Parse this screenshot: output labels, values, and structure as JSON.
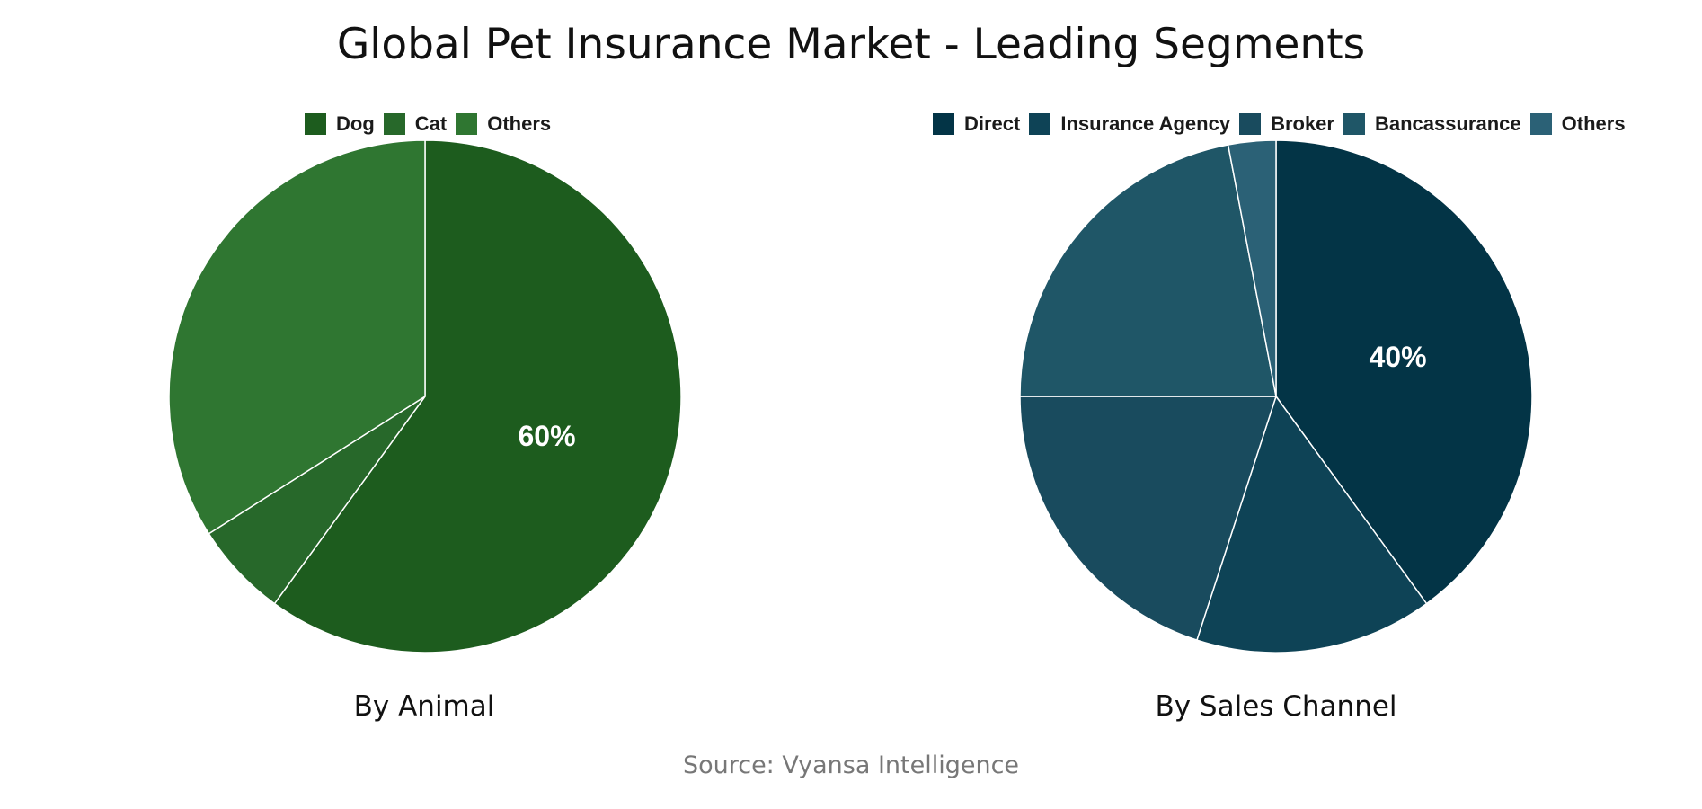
{
  "title": "Global Pet Insurance Market - Leading Segments",
  "source": "Source: Vyansa Intelligence",
  "chart_data": [
    {
      "type": "pie",
      "caption": "By Animal",
      "labels": [
        "Dog",
        "Cat",
        "Others"
      ],
      "values": [
        60,
        6,
        34
      ],
      "colors": [
        "#1d5c1e",
        "#27682a",
        "#2f7631"
      ],
      "data_labels": [
        "60%",
        "",
        ""
      ],
      "legend_position": "top"
    },
    {
      "type": "pie",
      "caption": "By Sales Channel",
      "labels": [
        "Direct",
        "Insurance Agency",
        "Broker",
        "Bancassurance",
        "Others"
      ],
      "values": [
        40,
        15,
        20,
        22,
        3
      ],
      "colors": [
        "#033446",
        "#0e4356",
        "#194b5e",
        "#1f5667",
        "#2b6176"
      ],
      "data_labels": [
        "40%",
        "",
        "",
        "",
        ""
      ],
      "legend_position": "top"
    }
  ]
}
